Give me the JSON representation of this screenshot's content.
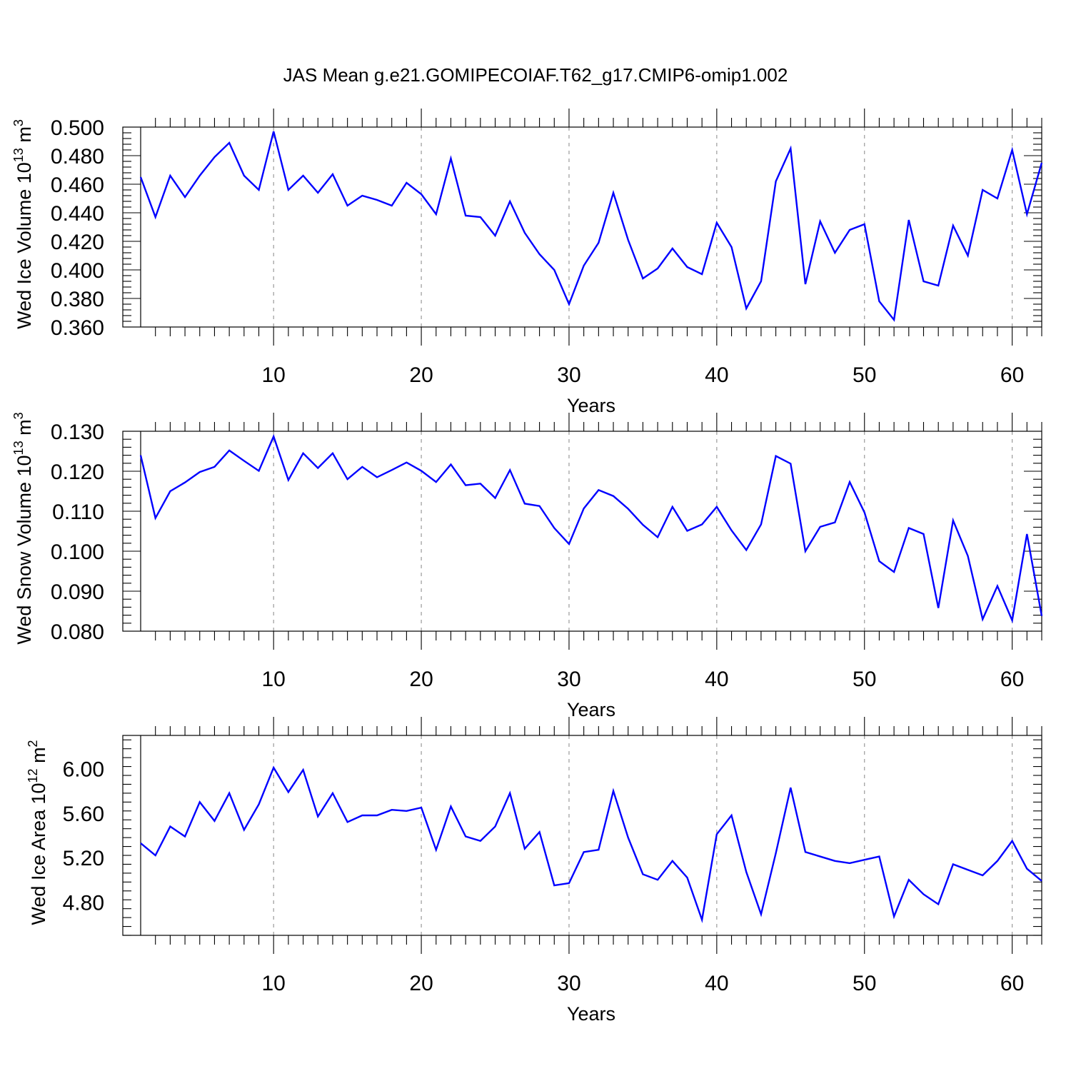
{
  "title": "JAS Mean g.e21.GOMIPECOIAF.T62_g17.CMIP6-omip1.002",
  "colors": {
    "line": "#0000ff",
    "frame": "#000000",
    "grid": "#9a9a9a"
  },
  "chart_data": [
    {
      "type": "line",
      "ylabel": {
        "main": "Wed Ice Volume 10",
        "exp": "13",
        "unit": " m",
        "unit_exp": "3"
      },
      "xlabel": "Years",
      "xlim": [
        1,
        62
      ],
      "ylim": [
        0.36,
        0.5
      ],
      "yticks": [
        0.36,
        0.38,
        0.4,
        0.42,
        0.44,
        0.46,
        0.48,
        0.5
      ],
      "ytick_labels": [
        "0.360",
        "0.380",
        "0.400",
        "0.420",
        "0.440",
        "0.460",
        "0.480",
        "0.500"
      ],
      "xticks": [
        10,
        20,
        30,
        40,
        50,
        60
      ],
      "xtick_labels": [
        "10",
        "20",
        "30",
        "40",
        "50",
        "60"
      ],
      "grid": "vertical dashed at major x ticks",
      "x": [
        1,
        2,
        3,
        4,
        5,
        6,
        7,
        8,
        9,
        10,
        11,
        12,
        13,
        14,
        15,
        16,
        17,
        18,
        19,
        20,
        21,
        22,
        23,
        24,
        25,
        26,
        27,
        28,
        29,
        30,
        31,
        32,
        33,
        34,
        35,
        36,
        37,
        38,
        39,
        40,
        41,
        42,
        43,
        44,
        45,
        46,
        47,
        48,
        49,
        50,
        51,
        52,
        53,
        54,
        55,
        56,
        57,
        58,
        59,
        60,
        61,
        62
      ],
      "values": [
        0.465,
        0.437,
        0.466,
        0.451,
        0.466,
        0.479,
        0.489,
        0.466,
        0.456,
        0.497,
        0.456,
        0.466,
        0.454,
        0.467,
        0.445,
        0.452,
        0.449,
        0.445,
        0.461,
        0.453,
        0.439,
        0.478,
        0.438,
        0.437,
        0.424,
        0.448,
        0.426,
        0.411,
        0.4,
        0.376,
        0.403,
        0.419,
        0.454,
        0.421,
        0.394,
        0.401,
        0.415,
        0.402,
        0.397,
        0.433,
        0.416,
        0.373,
        0.392,
        0.462,
        0.485,
        0.39,
        0.434,
        0.412,
        0.428,
        0.432,
        0.378,
        0.365,
        0.435,
        0.392,
        0.389,
        0.431,
        0.41,
        0.456,
        0.45,
        0.484,
        0.439,
        0.475
      ]
    },
    {
      "type": "line",
      "ylabel": {
        "main": "Wed Snow Volume 10",
        "exp": "13",
        "unit": " m",
        "unit_exp": "3"
      },
      "xlabel": "Years",
      "xlim": [
        1,
        62
      ],
      "ylim": [
        0.08,
        0.13
      ],
      "yticks": [
        0.08,
        0.09,
        0.1,
        0.11,
        0.12,
        0.13
      ],
      "ytick_labels": [
        "0.080",
        "0.090",
        "0.100",
        "0.110",
        "0.120",
        "0.130"
      ],
      "xticks": [
        10,
        20,
        30,
        40,
        50,
        60
      ],
      "xtick_labels": [
        "10",
        "20",
        "30",
        "40",
        "50",
        "60"
      ],
      "grid": "vertical dashed at major x ticks",
      "x": [
        1,
        2,
        3,
        4,
        5,
        6,
        7,
        8,
        9,
        10,
        11,
        12,
        13,
        14,
        15,
        16,
        17,
        18,
        19,
        20,
        21,
        22,
        23,
        24,
        25,
        26,
        27,
        28,
        29,
        30,
        31,
        32,
        33,
        34,
        35,
        36,
        37,
        38,
        39,
        40,
        41,
        42,
        43,
        44,
        45,
        46,
        47,
        48,
        49,
        50,
        51,
        52,
        53,
        54,
        55,
        56,
        57,
        58,
        59,
        60,
        61,
        62
      ],
      "values": [
        0.124,
        0.1083,
        0.115,
        0.1172,
        0.1198,
        0.1211,
        0.1252,
        0.1226,
        0.1201,
        0.1287,
        0.1178,
        0.1245,
        0.1208,
        0.1245,
        0.118,
        0.1211,
        0.1185,
        0.1203,
        0.1222,
        0.1201,
        0.1173,
        0.1217,
        0.1165,
        0.1169,
        0.1133,
        0.1203,
        0.1119,
        0.1113,
        0.1058,
        0.1018,
        0.1107,
        0.1153,
        0.1138,
        0.1106,
        0.1066,
        0.1035,
        0.1111,
        0.1051,
        0.1067,
        0.1111,
        0.1052,
        0.1003,
        0.1067,
        0.1238,
        0.1219,
        0.1,
        0.1061,
        0.1072,
        0.1173,
        0.1097,
        0.0975,
        0.0948,
        0.1058,
        0.1043,
        0.0858,
        0.1077,
        0.0988,
        0.083,
        0.0913,
        0.0827,
        0.1043,
        0.0838
      ]
    },
    {
      "type": "line",
      "ylabel": {
        "main": "Wed Ice Area 10",
        "exp": "12",
        "unit": " m",
        "unit_exp": "2"
      },
      "xlabel": "Years",
      "xlim": [
        1,
        62
      ],
      "ylim": [
        4.5,
        6.3
      ],
      "yticks": [
        4.8,
        5.2,
        5.6,
        6.0
      ],
      "ytick_labels": [
        "4.80",
        "5.20",
        "5.60",
        "6.00"
      ],
      "xticks": [
        10,
        20,
        30,
        40,
        50,
        60
      ],
      "xtick_labels": [
        "10",
        "20",
        "30",
        "40",
        "50",
        "60"
      ],
      "grid": "vertical dashed at major x ticks",
      "x": [
        1,
        2,
        3,
        4,
        5,
        6,
        7,
        8,
        9,
        10,
        11,
        12,
        13,
        14,
        15,
        16,
        17,
        18,
        19,
        20,
        21,
        22,
        23,
        24,
        25,
        26,
        27,
        28,
        29,
        30,
        31,
        32,
        33,
        34,
        35,
        36,
        37,
        38,
        39,
        40,
        41,
        42,
        43,
        44,
        45,
        46,
        47,
        48,
        49,
        50,
        51,
        52,
        53,
        54,
        55,
        56,
        57,
        58,
        59,
        60,
        61,
        62
      ],
      "values": [
        5.33,
        5.22,
        5.48,
        5.39,
        5.7,
        5.53,
        5.78,
        5.45,
        5.68,
        6.01,
        5.79,
        5.99,
        5.57,
        5.78,
        5.52,
        5.58,
        5.58,
        5.63,
        5.62,
        5.65,
        5.27,
        5.66,
        5.39,
        5.35,
        5.48,
        5.78,
        5.28,
        5.43,
        4.95,
        4.97,
        5.25,
        5.27,
        5.8,
        5.38,
        5.05,
        5.0,
        5.17,
        5.02,
        4.64,
        5.41,
        5.58,
        5.07,
        4.69,
        5.24,
        5.83,
        5.25,
        5.21,
        5.17,
        5.15,
        5.18,
        5.21,
        4.67,
        5.0,
        4.87,
        4.78,
        5.14,
        5.09,
        5.04,
        5.17,
        5.35,
        5.1,
        4.99
      ]
    }
  ]
}
